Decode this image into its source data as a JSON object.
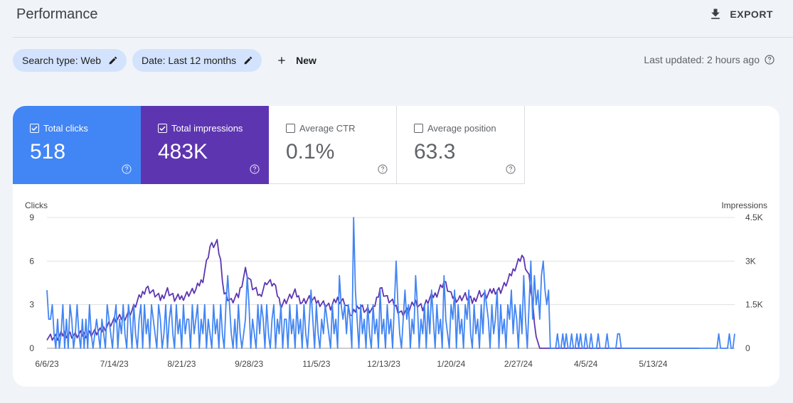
{
  "header": {
    "title": "Performance",
    "export_label": "EXPORT"
  },
  "filters": {
    "search_type": "Search type: Web",
    "date": "Date: Last 12 months",
    "new_label": "New",
    "last_updated": "Last updated: 2 hours ago"
  },
  "metrics": [
    {
      "label": "Total clicks",
      "value": "518",
      "checked": true
    },
    {
      "label": "Total impressions",
      "value": "483K",
      "checked": true
    },
    {
      "label": "Average CTR",
      "value": "0.1%",
      "checked": false
    },
    {
      "label": "Average position",
      "value": "63.3",
      "checked": false
    }
  ],
  "colors": {
    "clicks": "#4285f4",
    "impressions": "#5e35b1",
    "chip": "#d3e3fd",
    "grid": "#e0e0e0"
  },
  "chart_data": {
    "type": "line",
    "left_axis_label": "Clicks",
    "right_axis_label": "Impressions",
    "left_ticks": [
      "0",
      "3",
      "6",
      "9"
    ],
    "right_ticks": [
      "0",
      "1.5K",
      "3K",
      "4.5K"
    ],
    "ylim_left": [
      0,
      9
    ],
    "ylim_right": [
      0,
      4500
    ],
    "x_tick_labels": [
      "6/6/23",
      "7/14/23",
      "8/21/23",
      "9/28/23",
      "11/5/23",
      "12/13/23",
      "1/20/24",
      "2/27/24",
      "4/5/24",
      "5/13/24"
    ],
    "x_tick_index": [
      0,
      38,
      76,
      114,
      152,
      190,
      228,
      266,
      304,
      342
    ],
    "grid": true,
    "series": [
      {
        "name": "Clicks",
        "axis": "left",
        "values": [
          4,
          2,
          2,
          3,
          1,
          0,
          2,
          0,
          1,
          3,
          0,
          2,
          0,
          3,
          2,
          0,
          1,
          3,
          1,
          0,
          2,
          0,
          2,
          0,
          3,
          1,
          0,
          1,
          2,
          1,
          0,
          2,
          1,
          0,
          3,
          2,
          1,
          0,
          2,
          3,
          0,
          2,
          1,
          3,
          1,
          0,
          3,
          2,
          0,
          3,
          1,
          0,
          2,
          3,
          0,
          3,
          1,
          2,
          0,
          3,
          2,
          1,
          0,
          3,
          2,
          0,
          1,
          3,
          0,
          2,
          3,
          1,
          0,
          3,
          1,
          2,
          0,
          3,
          1,
          2,
          2,
          0,
          3,
          1,
          2,
          3,
          0,
          2,
          1,
          3,
          0,
          2,
          1,
          0,
          3,
          1,
          2,
          0,
          3,
          1,
          0,
          3,
          5,
          3,
          1,
          0,
          2,
          0,
          3,
          1,
          0,
          1,
          2,
          5,
          3,
          0,
          2,
          1,
          0,
          3,
          1,
          3,
          2,
          0,
          3,
          1,
          0,
          2,
          3,
          0,
          2,
          1,
          3,
          0,
          2,
          2,
          0,
          3,
          1,
          2,
          0,
          3,
          1,
          2,
          0,
          3,
          1,
          0,
          2,
          4,
          2,
          0,
          3,
          1,
          0,
          2,
          1,
          3,
          2,
          1,
          0,
          3,
          1,
          2,
          0,
          5,
          3,
          2,
          3,
          1,
          3,
          2,
          0,
          9,
          4,
          2,
          0,
          3,
          1,
          2,
          0,
          3,
          1,
          0,
          3,
          1,
          2,
          0,
          4,
          1,
          2,
          0,
          3,
          1,
          2,
          0,
          3,
          6,
          3,
          1,
          0,
          2,
          4,
          2,
          3,
          0,
          2,
          1,
          5,
          3,
          0,
          2,
          1,
          3,
          0,
          3,
          1,
          4,
          2,
          0,
          3,
          1,
          2,
          0,
          5,
          2,
          1,
          0,
          3,
          2,
          4,
          0,
          3,
          1,
          2,
          0,
          3,
          2,
          4,
          1,
          0,
          3,
          1,
          2,
          0,
          3,
          1,
          4,
          3,
          2,
          0,
          3,
          1,
          2,
          4,
          0,
          3,
          1,
          2,
          0,
          3,
          2,
          4,
          1,
          3,
          2,
          0,
          3,
          1,
          5,
          2,
          0,
          3,
          6,
          2,
          5,
          3,
          4,
          2,
          5,
          6,
          4,
          3,
          4,
          0,
          0,
          0,
          0,
          1,
          0,
          0,
          1,
          0,
          1,
          0,
          0,
          1,
          0,
          0,
          1,
          0,
          1,
          0,
          0,
          1,
          0,
          0,
          1,
          0,
          0,
          0,
          1,
          0,
          0,
          0,
          0,
          1,
          0,
          0,
          0,
          0,
          0,
          1,
          1,
          0,
          0,
          0,
          0,
          0,
          0,
          0,
          0,
          0,
          0,
          0,
          0,
          0,
          0,
          0,
          0,
          0,
          0,
          0,
          0,
          0,
          0,
          0,
          0,
          0,
          0,
          0,
          0,
          0,
          0,
          0,
          0,
          0,
          0,
          0,
          0,
          0,
          0,
          0,
          0,
          0,
          0,
          0,
          0,
          0,
          0,
          0,
          0,
          0,
          0,
          0,
          0,
          0,
          0,
          0,
          1,
          0,
          0,
          0,
          0,
          0,
          1,
          0,
          0,
          1
        ]
      },
      {
        "name": "Impressions",
        "axis": "left",
        "scale": "right",
        "values": []
      }
    ]
  }
}
